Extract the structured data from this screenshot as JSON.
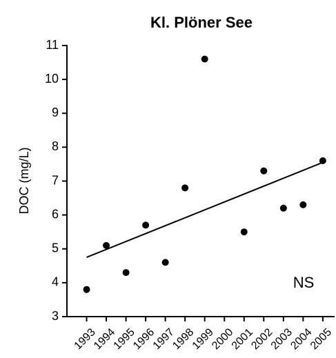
{
  "chart_data": {
    "type": "scatter",
    "title": "Kl. Plöner See",
    "y_label": "DOC (mg/L)",
    "annotation": "NS",
    "x": [
      1993,
      1994,
      1995,
      1996,
      1997,
      1998,
      1999,
      2001,
      2002,
      2003,
      2004,
      2005
    ],
    "values": [
      3.8,
      5.1,
      4.3,
      5.7,
      4.6,
      6.8,
      10.6,
      5.5,
      7.3,
      6.2,
      6.3,
      7.6
    ],
    "color": "#000000",
    "trend_line": {
      "x": [
        1993,
        2005
      ],
      "values": [
        4.75,
        7.55
      ]
    },
    "xlim": [
      1992,
      2005.6
    ],
    "xticks": [
      1993,
      1994,
      1995,
      1996,
      1997,
      1998,
      1999,
      2000,
      2001,
      2002,
      2003,
      2004,
      2005
    ],
    "ylim": [
      3,
      11
    ],
    "yticks": [
      3,
      4,
      5,
      6,
      7,
      8,
      9,
      10,
      11
    ]
  }
}
